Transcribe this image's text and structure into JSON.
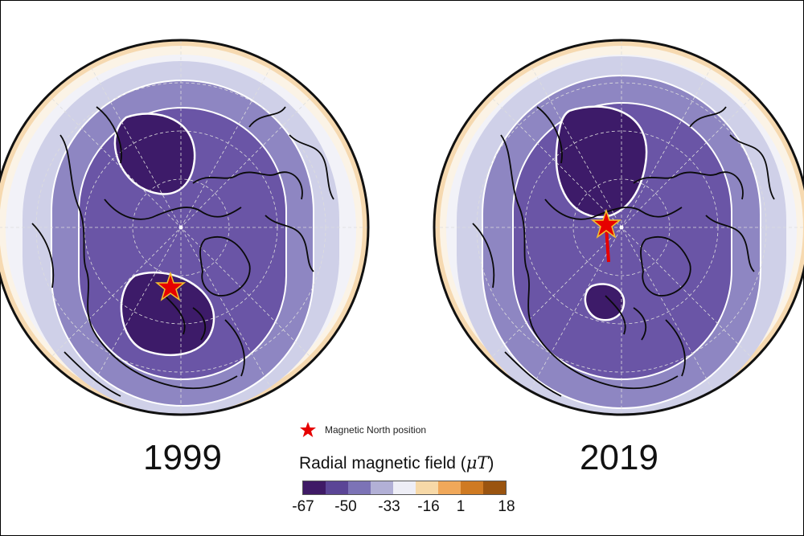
{
  "panels": [
    {
      "year": "1999"
    },
    {
      "year": "2019"
    }
  ],
  "legend": {
    "marker_label": "Magnetic North position",
    "marker_color": "#e60000",
    "title_prefix": "Radial magnetic field (",
    "title_unit": "μT",
    "title_suffix": ")",
    "ticks": [
      "-67",
      "-50",
      "-33",
      "-16",
      "1",
      "18"
    ],
    "colors": [
      "#3f1a66",
      "#5b4596",
      "#7c73b6",
      "#b2b0d6",
      "#eeeef6",
      "#f7d9a8",
      "#f0a85a",
      "#cf7a22",
      "#9a5410"
    ]
  }
}
